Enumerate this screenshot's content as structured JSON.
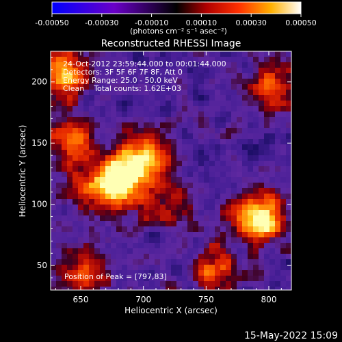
{
  "chart_data": {
    "type": "heatmap",
    "title": "Reconstructed RHESSI Image",
    "xlabel": "Heliocentric X (arcsec)",
    "ylabel": "Heliocentric Y (arcsec)",
    "xlim": [
      626,
      818
    ],
    "ylim": [
      30,
      225
    ],
    "xticks": [
      "650",
      "700",
      "750",
      "800"
    ],
    "yticks": [
      "50",
      "100",
      "150",
      "200"
    ],
    "xtick_values": [
      650,
      700,
      750,
      800
    ],
    "ytick_values": [
      50,
      100,
      150,
      200
    ],
    "colorbar": {
      "ticks": [
        "-0.00050",
        "-0.00030",
        "-0.00010",
        "0.00010",
        "0.00030",
        "0.00050"
      ],
      "tick_values": [
        -0.0005,
        -0.0003,
        -0.0001,
        0.0001,
        0.0003,
        0.0005
      ],
      "range": [
        -0.0005,
        0.0005
      ],
      "unit_label": "(photons cm⁻² s⁻¹ asec⁻²)"
    },
    "annotations": {
      "time_range": "24-Oct-2012 23:59:44.000 to 00:01:44.000",
      "detectors": "Detectors: 3F 5F 6F 7F 8F, Att 0",
      "energy_range": "Energy Range: 25.0 - 50.0 keV",
      "method": "Clean    Total counts: 1.62E+03",
      "peak_position": "Position of Peak = [797,83]"
    },
    "emission_sources": [
      {
        "x": 681,
        "y": 118,
        "intensity": 1.0
      },
      {
        "x": 700,
        "y": 140,
        "intensity": 0.75
      },
      {
        "x": 793,
        "y": 90,
        "intensity": 1.0
      },
      {
        "x": 635,
        "y": 205,
        "intensity": 0.8
      },
      {
        "x": 643,
        "y": 150,
        "intensity": 0.6
      },
      {
        "x": 650,
        "y": 45,
        "intensity": 0.55
      },
      {
        "x": 758,
        "y": 45,
        "intensity": 0.55
      },
      {
        "x": 805,
        "y": 195,
        "intensity": 0.55
      },
      {
        "x": 655,
        "y": 110,
        "intensity": 0.45
      },
      {
        "x": 720,
        "y": 95,
        "intensity": 0.4
      }
    ],
    "footer_date": "15-May-2022 15:09"
  }
}
